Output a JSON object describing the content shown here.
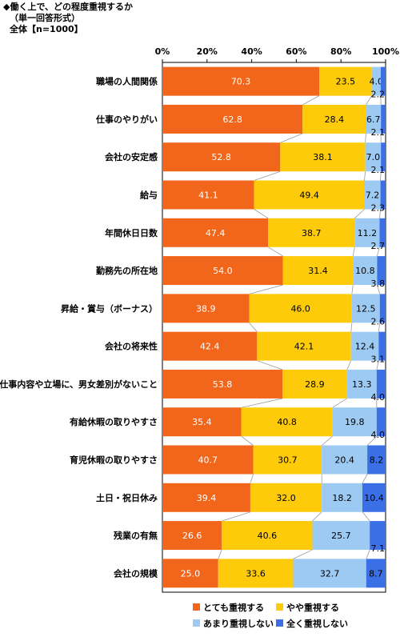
{
  "header": {
    "title": "◆働く上で、どの程度重視するか",
    "subtitle": "（単一回答形式）",
    "base": "全体【n=1000】"
  },
  "chart_data": {
    "type": "bar",
    "orientation": "horizontal-stacked-100",
    "xlim": [
      0,
      100
    ],
    "ticks": [
      "0%",
      "20%",
      "40%",
      "60%",
      "80%",
      "100%"
    ],
    "legend_placement": "bottom",
    "categories": [
      "職場の人間関係",
      "仕事のやりがい",
      "会社の安定感",
      "給与",
      "年間休日日数",
      "勤務先の所在地",
      "昇給・賞与（ボーナス）",
      "会社の将来性",
      "仕事内容や立場に、男女差別がないこと",
      "有給休暇の取りやすさ",
      "育児休暇の取りやすさ",
      "土日・祝日休み",
      "残業の有無",
      "会社の規模"
    ],
    "series": [
      {
        "name": "とても重視する",
        "color": "#F2661B",
        "values": [
          70.3,
          62.8,
          52.8,
          41.1,
          47.4,
          54.0,
          38.9,
          42.4,
          53.8,
          35.4,
          40.7,
          39.4,
          26.6,
          25.0
        ],
        "labels": [
          "70.3",
          "62.8",
          "52.8",
          "41.1",
          "47.4",
          "54.0",
          "38.9",
          "42.4",
          "53.8",
          "35.4",
          "40.7",
          "39.4",
          "26.6",
          "25.0"
        ]
      },
      {
        "name": "やや重視する",
        "color": "#FDCB0A",
        "values": [
          23.5,
          28.4,
          38.1,
          49.4,
          38.7,
          31.4,
          46.0,
          42.1,
          28.9,
          40.8,
          30.7,
          32.0,
          40.6,
          33.6
        ],
        "labels": [
          "23.5",
          "28.4",
          "38.1",
          "49.4",
          "38.7",
          "31.4",
          "46.0",
          "42.1",
          "28.9",
          "40.8",
          "30.7",
          "32.0",
          "40.6",
          "33.6"
        ]
      },
      {
        "name": "あまり重視しない",
        "color": "#9DCAF2",
        "values": [
          4.0,
          6.7,
          7.0,
          7.2,
          11.2,
          10.8,
          12.5,
          12.4,
          13.3,
          19.8,
          20.4,
          18.2,
          25.7,
          32.7
        ],
        "labels": [
          "4.0",
          "6.7",
          "7.0",
          "7.2",
          "11.2",
          "10.8",
          "12.5",
          "12.4",
          "13.3",
          "19.8",
          "20.4",
          "18.2",
          "25.7",
          "32.7"
        ]
      },
      {
        "name": "全く重視しない",
        "color": "#3B6FE6",
        "values": [
          2.2,
          2.1,
          2.1,
          2.3,
          2.7,
          3.8,
          2.6,
          3.1,
          4.0,
          4.0,
          8.2,
          10.4,
          7.1,
          8.7
        ],
        "labels": [
          "2.2",
          "2.1",
          "2.1",
          "2.3",
          "2.7",
          "3.8",
          "2.6",
          "3.1",
          "4.0",
          "4.0",
          "8.2",
          "10.4",
          "7.1",
          "8.7"
        ]
      }
    ]
  }
}
